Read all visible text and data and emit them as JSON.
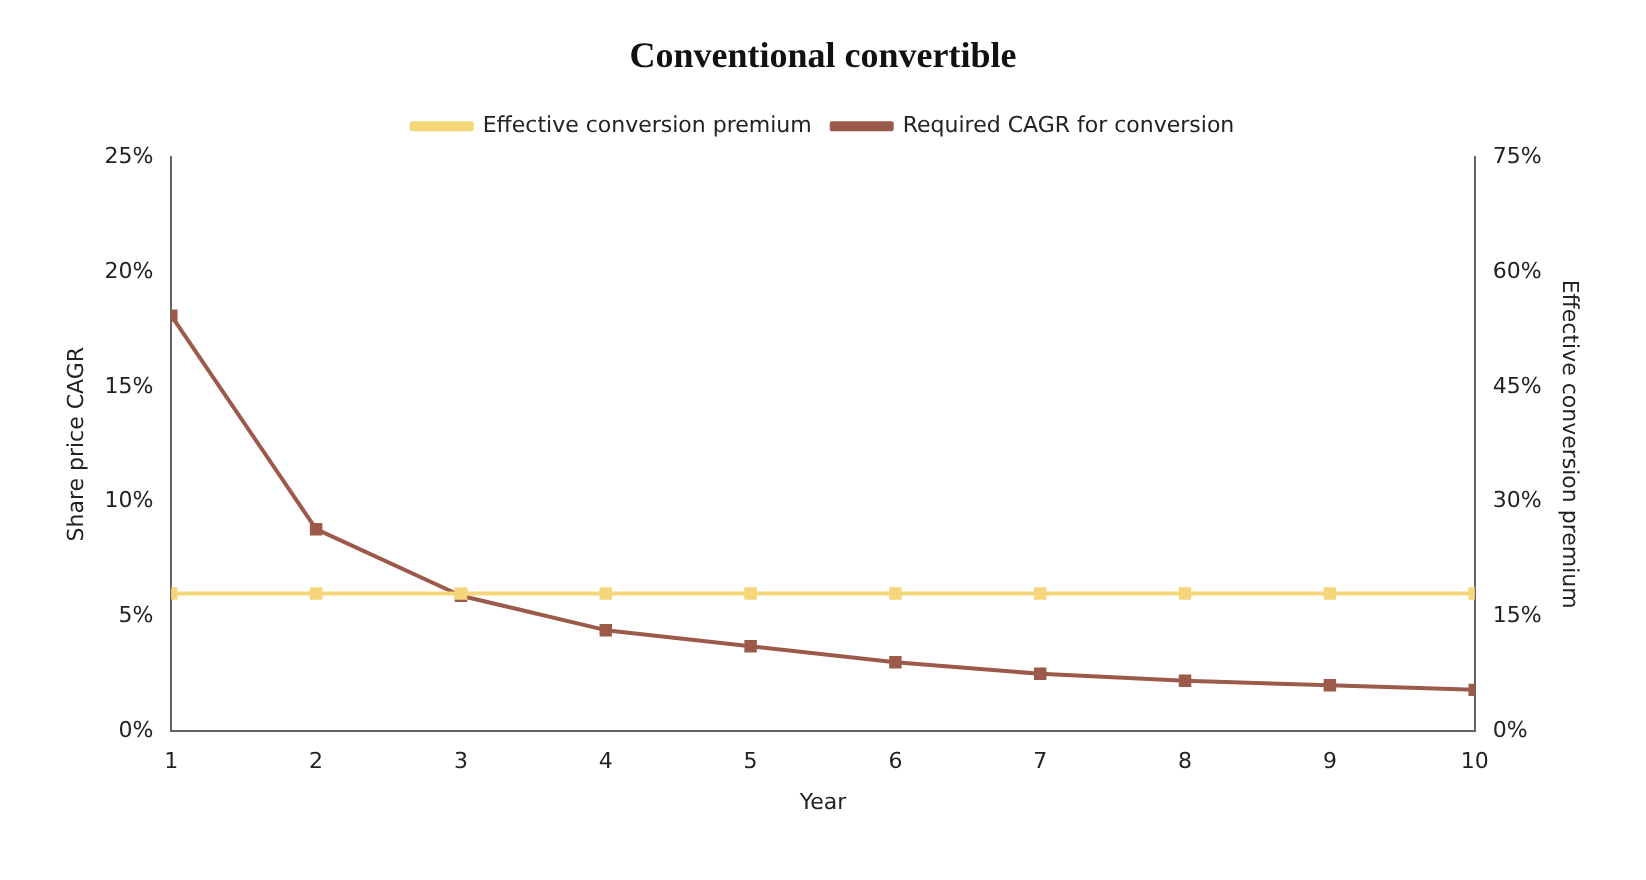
{
  "chart_data": {
    "type": "line",
    "title": "Conventional convertible",
    "xlabel": "Year",
    "ylabel": "Share price CAGR",
    "y2label": "Effective conversion premium",
    "x": [
      1,
      2,
      3,
      4,
      5,
      6,
      7,
      8,
      9,
      10
    ],
    "xlim": [
      1,
      10
    ],
    "xticks": [
      1,
      2,
      3,
      4,
      5,
      6,
      7,
      8,
      9,
      10
    ],
    "ylim": [
      0,
      25
    ],
    "yticks": [
      {
        "value": 0,
        "label": "0%"
      },
      {
        "value": 5,
        "label": "5%"
      },
      {
        "value": 10,
        "label": "10%"
      },
      {
        "value": 15,
        "label": "15%"
      },
      {
        "value": 20,
        "label": "20%"
      },
      {
        "value": 25,
        "label": "25%"
      }
    ],
    "y2lim": [
      0,
      75
    ],
    "y2ticks": [
      {
        "value": 0,
        "label": "0%"
      },
      {
        "value": 15,
        "label": "15%"
      },
      {
        "value": 30,
        "label": "30%"
      },
      {
        "value": 45,
        "label": "45%"
      },
      {
        "value": 60,
        "label": "60%"
      },
      {
        "value": 75,
        "label": "75%"
      }
    ],
    "series": [
      {
        "name": "Required CAGR for conversion",
        "color": "#9c5a4a",
        "values": [
          18.1,
          8.8,
          5.9,
          4.4,
          3.7,
          3.0,
          2.5,
          2.2,
          2.0,
          1.8
        ]
      },
      {
        "name": "Effective conversion premium",
        "color": "#f5d67a",
        "axis": "y2",
        "values": [
          18,
          18,
          18,
          18,
          18,
          18,
          18,
          18,
          18,
          18
        ]
      }
    ],
    "legend": "top",
    "grid": false,
    "marker": "square",
    "line_style": "solid"
  }
}
